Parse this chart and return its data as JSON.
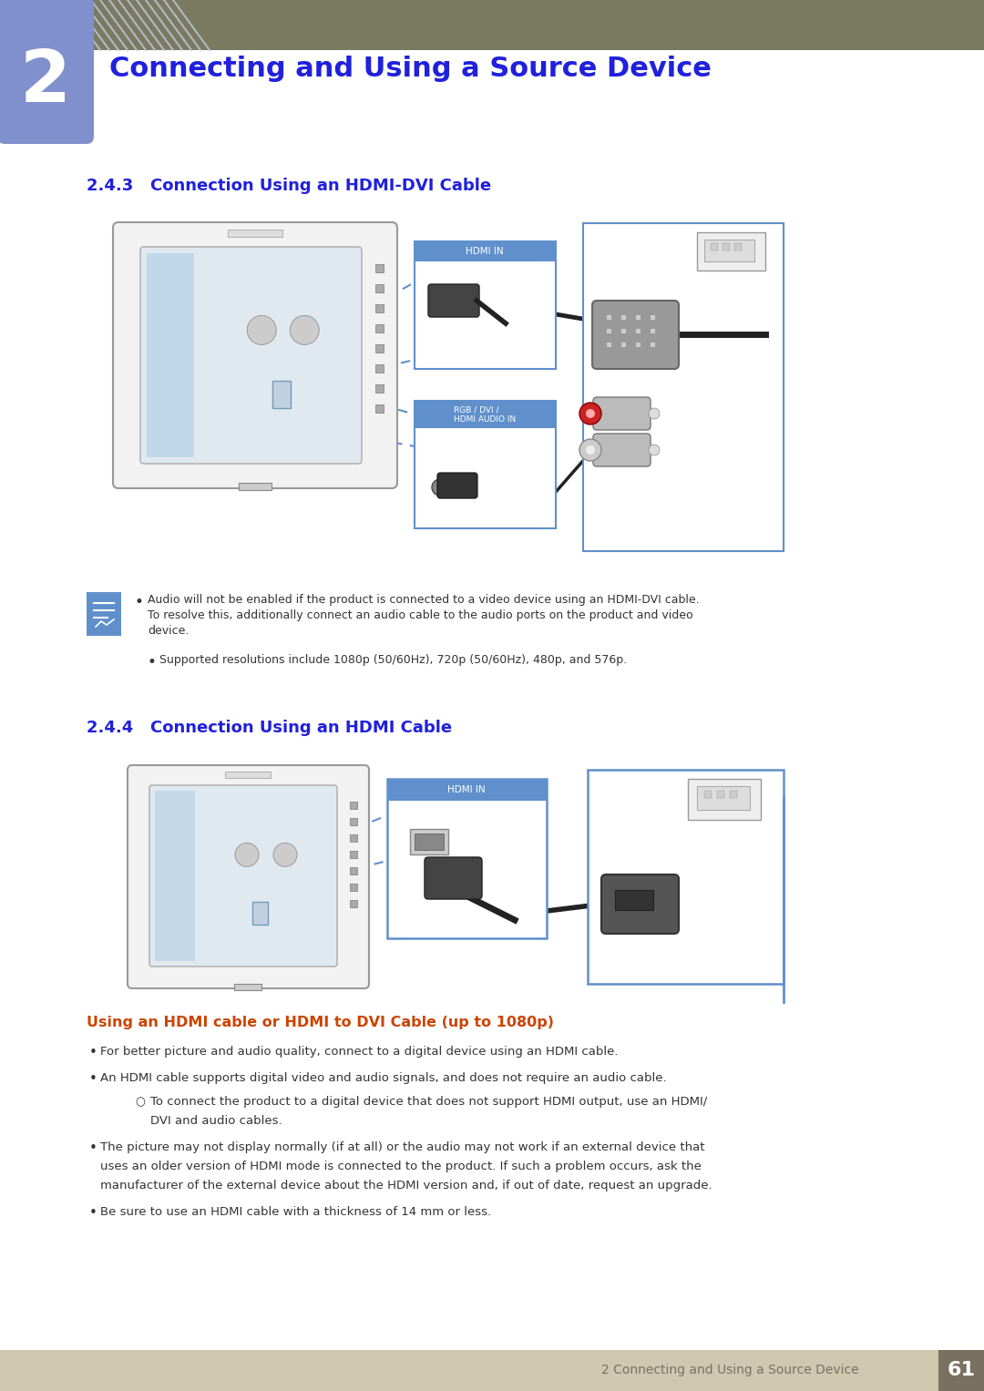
{
  "page_bg": "#ffffff",
  "header_bar_color": "#7a7a60",
  "header_number_bg": "#8090cc",
  "header_stripe_color": "#c0c8e0",
  "header_text": "Connecting and Using a Source Device",
  "header_number": "2",
  "header_text_color": "#2020dd",
  "section1_title": "2.4.3   Connection Using an HDMI-DVI Cable",
  "section2_title": "2.4.4   Connection Using an HDMI Cable",
  "section_title_color": "#2020dd",
  "hdmi_label": "HDMI IN",
  "rgb_label": "RGB / DVI /\nHDMI AUDIO IN",
  "label_bg": "#6090cc",
  "label_text_color": "#ffffff",
  "box_border_color": "#6090cc",
  "note_text1a": "Audio will not be enabled if the product is connected to a video device using an HDMI-DVI cable.",
  "note_text1b": "To resolve this, additionally connect an audio cable to the audio ports on the product and video",
  "note_text1c": "device.",
  "note_text2": "Supported resolutions include 1080p (50/60Hz), 720p (50/60Hz), 480p, and 576p.",
  "subsection_title": "Using an HDMI cable or HDMI to DVI Cable (up to 1080p)",
  "subsection_title_color": "#cc4400",
  "bullet1": "For better picture and audio quality, connect to a digital device using an HDMI cable.",
  "bullet2": "An HDMI cable supports digital video and audio signals, and does not require an audio cable.",
  "sub_bullet": "To connect the product to a digital device that does not support HDMI output, use an HDMI/\nDVI and audio cables.",
  "bullet3a": "The picture may not display normally (if at all) or the audio may not work if an external device that",
  "bullet3b": "uses an older version of HDMI mode is connected to the product. If such a problem occurs, ask the",
  "bullet3c": "manufacturer of the external device about the HDMI version and, if out of date, request an upgrade.",
  "bullet4": "Be sure to use an HDMI cable with a thickness of 14 mm or less.",
  "footer_bg": "#cec8b0",
  "footer_text": "2 Connecting and Using a Source Device",
  "footer_text_color": "#7a7060",
  "footer_number": "61",
  "footer_number_bg": "#7a7060",
  "footer_number_text_color": "#ffffff",
  "body_text_color": "#333333",
  "dot_color": "#6090cc",
  "monitor_outer": "#aaaaaa",
  "monitor_inner_fill": "#e8eef5",
  "monitor_screen_fill": "#d0dce8",
  "cable_color": "#222222",
  "rca_red": "#cc2222",
  "note_icon_bg": "#6090cc"
}
